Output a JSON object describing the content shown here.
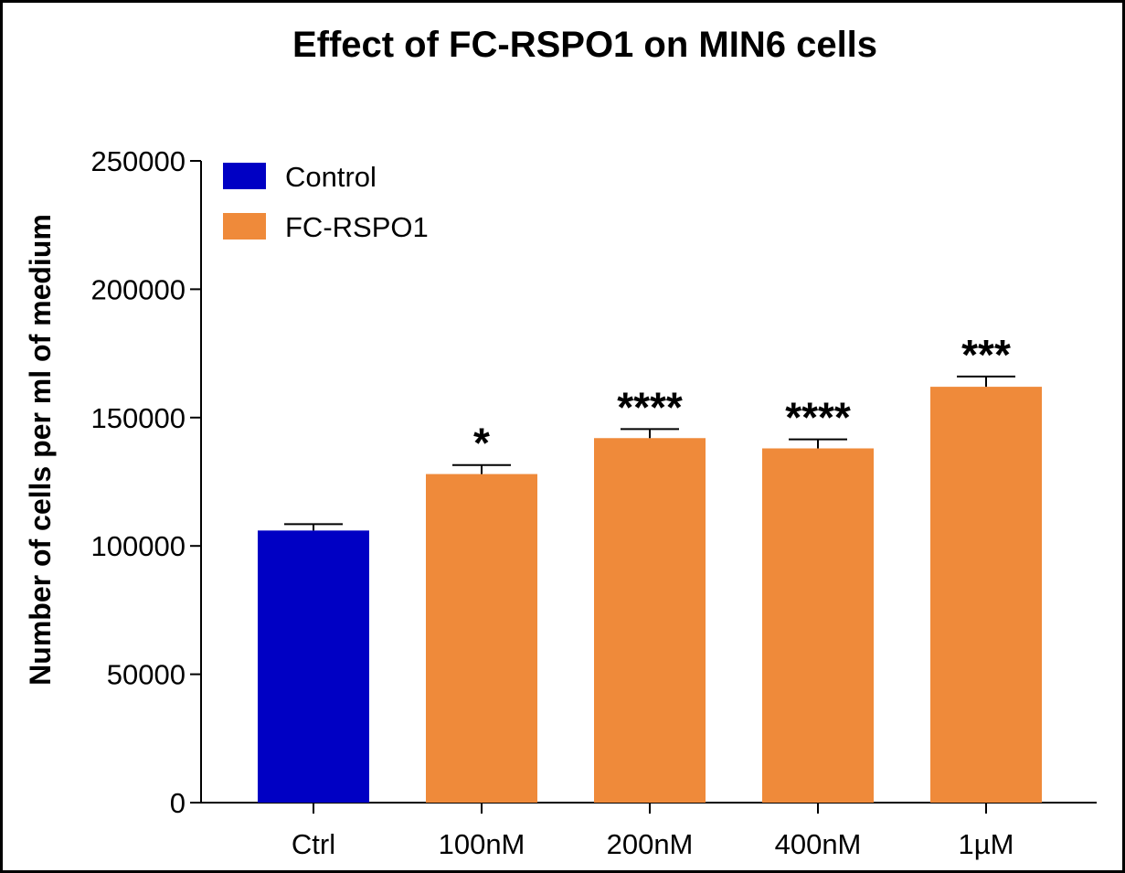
{
  "chart_data": {
    "type": "bar",
    "title": "Effect of FC-RSPO1 on MIN6 cells",
    "xlabel": "",
    "ylabel": "Number of cells per ml of medium",
    "ylim": [
      0,
      250000
    ],
    "yticks": [
      0,
      50000,
      100000,
      150000,
      200000,
      250000
    ],
    "ytick_labels": [
      "0",
      "50000",
      "100000",
      "150000",
      "200000",
      "250000"
    ],
    "categories": [
      "Ctrl",
      "100nM",
      "200nM",
      "400nM",
      "1µM"
    ],
    "values": [
      106000,
      128000,
      142000,
      138000,
      162000
    ],
    "errors": [
      2500,
      3500,
      3500,
      3500,
      4000
    ],
    "significance": [
      "",
      "*",
      "****",
      "****",
      "***"
    ],
    "bar_series": [
      "Control",
      "FC-RSPO1",
      "FC-RSPO1",
      "FC-RSPO1",
      "FC-RSPO1"
    ],
    "legend": [
      {
        "name": "Control",
        "color": "#0000c4"
      },
      {
        "name": "FC-RSPO1",
        "color": "#ef8a3a"
      }
    ],
    "legend_position": "top-left",
    "grid": false
  }
}
